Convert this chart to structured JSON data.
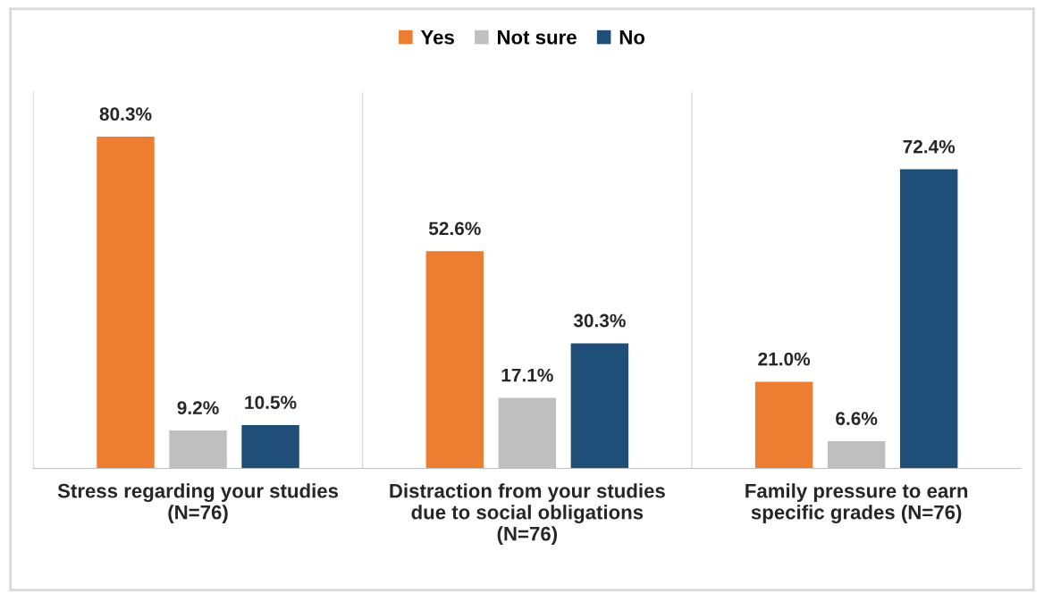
{
  "chart_data": {
    "type": "bar",
    "categories": [
      "Stress regarding your studies\n(N=76)",
      "Distraction from your studies\ndue to social obligations\n(N=76)",
      "Family pressure to earn\nspecific grades (N=76)"
    ],
    "series": [
      {
        "name": "Yes",
        "color": "#ed7d31",
        "values": [
          80.3,
          52.6,
          21.0
        ],
        "value_labels": [
          "80.3%",
          "52.6%",
          "21.0%"
        ]
      },
      {
        "name": "Not sure",
        "color": "#bfbfbf",
        "values": [
          9.2,
          17.1,
          6.6
        ],
        "value_labels": [
          "9.2%",
          "17.1%",
          "6.6%"
        ]
      },
      {
        "name": "No",
        "color": "#1f4e79",
        "values": [
          10.5,
          30.3,
          72.4
        ],
        "value_labels": [
          "10.5%",
          "30.3%",
          "72.4%"
        ]
      }
    ],
    "legend": "top"
  }
}
